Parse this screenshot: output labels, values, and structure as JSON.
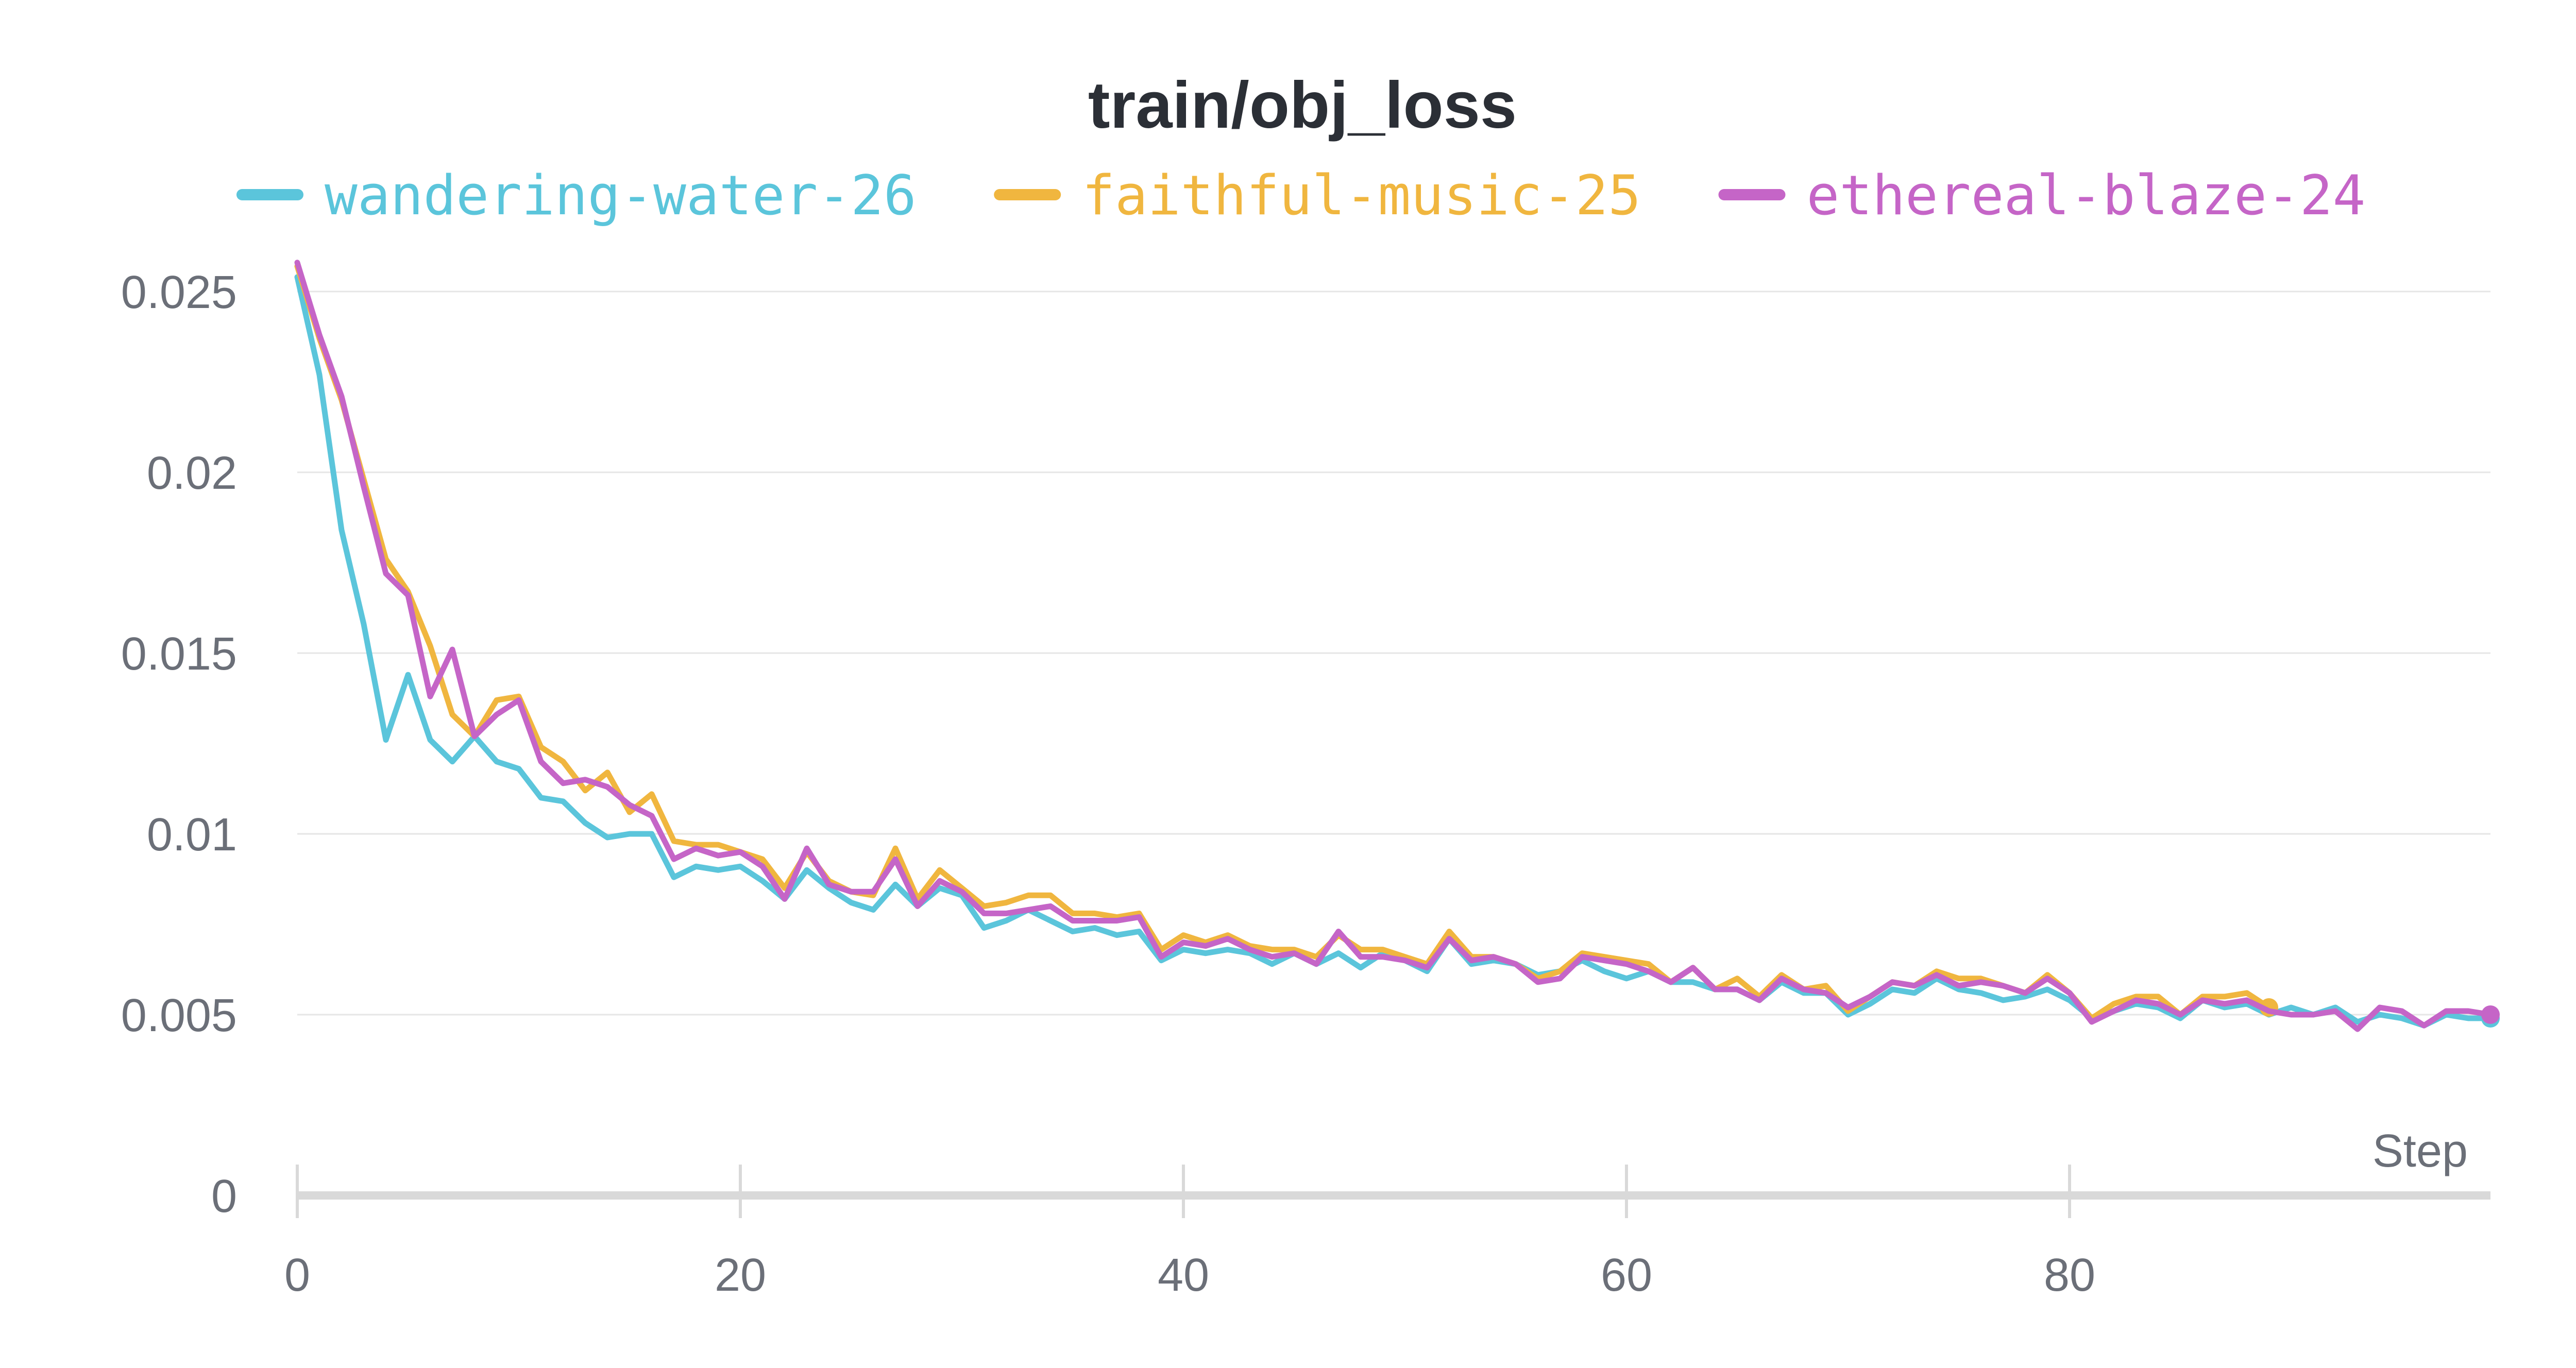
{
  "chart_data": {
    "type": "line",
    "title": "train/obj_loss",
    "xlabel": "Step",
    "ylabel": "",
    "xlim": [
      0,
      99
    ],
    "ylim": [
      0,
      0.025
    ],
    "grid": true,
    "legend_position": "top",
    "x_ticks": [
      0,
      20,
      40,
      60,
      80
    ],
    "x_tick_labels": [
      "0",
      "20",
      "40",
      "60",
      "80"
    ],
    "y_ticks": [
      0,
      0.005,
      0.01,
      0.015,
      0.02,
      0.025
    ],
    "y_tick_labels": [
      "0",
      "0.005",
      "0.01",
      "0.015",
      "0.02",
      "0.025"
    ],
    "series": [
      {
        "name": "wandering-water-26",
        "color": "#5bc5db",
        "x_start": 0,
        "values": [
          0.0254,
          0.0227,
          0.0184,
          0.0158,
          0.0126,
          0.0144,
          0.0126,
          0.012,
          0.0127,
          0.012,
          0.0118,
          0.011,
          0.0109,
          0.0103,
          0.0099,
          0.01,
          0.01,
          0.0088,
          0.0091,
          0.009,
          0.0091,
          0.0087,
          0.0082,
          0.009,
          0.0085,
          0.0081,
          0.0079,
          0.0086,
          0.008,
          0.0085,
          0.0083,
          0.0074,
          0.0076,
          0.0079,
          0.0076,
          0.0073,
          0.0074,
          0.0072,
          0.0073,
          0.0065,
          0.0068,
          0.0067,
          0.0068,
          0.0067,
          0.0064,
          0.0067,
          0.0064,
          0.0067,
          0.0063,
          0.0067,
          0.0065,
          0.0062,
          0.0071,
          0.0064,
          0.0065,
          0.0064,
          0.0061,
          0.0062,
          0.0065,
          0.0062,
          0.006,
          0.0062,
          0.0059,
          0.0059,
          0.0057,
          0.0057,
          0.0054,
          0.0059,
          0.0056,
          0.0056,
          0.005,
          0.0053,
          0.0057,
          0.0056,
          0.006,
          0.0057,
          0.0056,
          0.0054,
          0.0055,
          0.0057,
          0.0054,
          0.0049,
          0.0051,
          0.0053,
          0.0052,
          0.0049,
          0.0054,
          0.0052,
          0.0053,
          0.005,
          0.0052,
          0.005,
          0.0052,
          0.0048,
          0.005,
          0.0049,
          0.0047,
          0.005,
          0.0049,
          0.0049
        ]
      },
      {
        "name": "faithful-music-25",
        "color": "#f0b63f",
        "x_start": 0,
        "values": [
          0.0257,
          0.0237,
          0.022,
          0.0198,
          0.0176,
          0.0167,
          0.0152,
          0.0133,
          0.0127,
          0.0137,
          0.0138,
          0.0124,
          0.012,
          0.0112,
          0.0117,
          0.0106,
          0.0111,
          0.0098,
          0.0097,
          0.0097,
          0.0095,
          0.0093,
          0.0085,
          0.0095,
          0.0087,
          0.0084,
          0.0083,
          0.0096,
          0.0082,
          0.009,
          0.0085,
          0.008,
          0.0081,
          0.0083,
          0.0083,
          0.0078,
          0.0078,
          0.0077,
          0.0078,
          0.0068,
          0.0072,
          0.007,
          0.0072,
          0.0069,
          0.0068,
          0.0068,
          0.0066,
          0.0072,
          0.0068,
          0.0068,
          0.0066,
          0.0064,
          0.0073,
          0.0066,
          0.0066,
          0.0064,
          0.006,
          0.0062,
          0.0067,
          0.0066,
          0.0065,
          0.0064,
          0.0059,
          0.0063,
          0.0057,
          0.006,
          0.0055,
          0.0061,
          0.0057,
          0.0058,
          0.0051,
          0.0055,
          0.0059,
          0.0058,
          0.0062,
          0.006,
          0.006,
          0.0058,
          0.0056,
          0.0061,
          0.0056,
          0.0049,
          0.0053,
          0.0055,
          0.0055,
          0.005,
          0.0055,
          0.0055,
          0.0056,
          0.0052
        ]
      },
      {
        "name": "ethereal-blaze-24",
        "color": "#c565c7",
        "x_start": 0,
        "values": [
          0.0258,
          0.0238,
          0.0221,
          0.0196,
          0.0172,
          0.0166,
          0.0138,
          0.0151,
          0.0127,
          0.0133,
          0.0137,
          0.012,
          0.0114,
          0.0115,
          0.0113,
          0.0108,
          0.0105,
          0.0093,
          0.0096,
          0.0094,
          0.0095,
          0.0091,
          0.0082,
          0.0096,
          0.0086,
          0.0084,
          0.0084,
          0.0093,
          0.008,
          0.0087,
          0.0084,
          0.0078,
          0.0078,
          0.0079,
          0.008,
          0.0076,
          0.0076,
          0.0076,
          0.0077,
          0.0066,
          0.007,
          0.0069,
          0.0071,
          0.0068,
          0.0066,
          0.0067,
          0.0064,
          0.0073,
          0.0066,
          0.0066,
          0.0065,
          0.0063,
          0.0071,
          0.0065,
          0.0066,
          0.0064,
          0.0059,
          0.006,
          0.0066,
          0.0065,
          0.0064,
          0.0062,
          0.0059,
          0.0063,
          0.0057,
          0.0057,
          0.0054,
          0.006,
          0.0057,
          0.0056,
          0.0052,
          0.0055,
          0.0059,
          0.0058,
          0.0061,
          0.0058,
          0.0059,
          0.0058,
          0.0056,
          0.006,
          0.0056,
          0.0048,
          0.0051,
          0.0054,
          0.0053,
          0.005,
          0.0054,
          0.0053,
          0.0054,
          0.0051,
          0.005,
          0.005,
          0.0051,
          0.0046,
          0.0052,
          0.0051,
          0.0047,
          0.0051,
          0.0051,
          0.005
        ]
      }
    ]
  }
}
